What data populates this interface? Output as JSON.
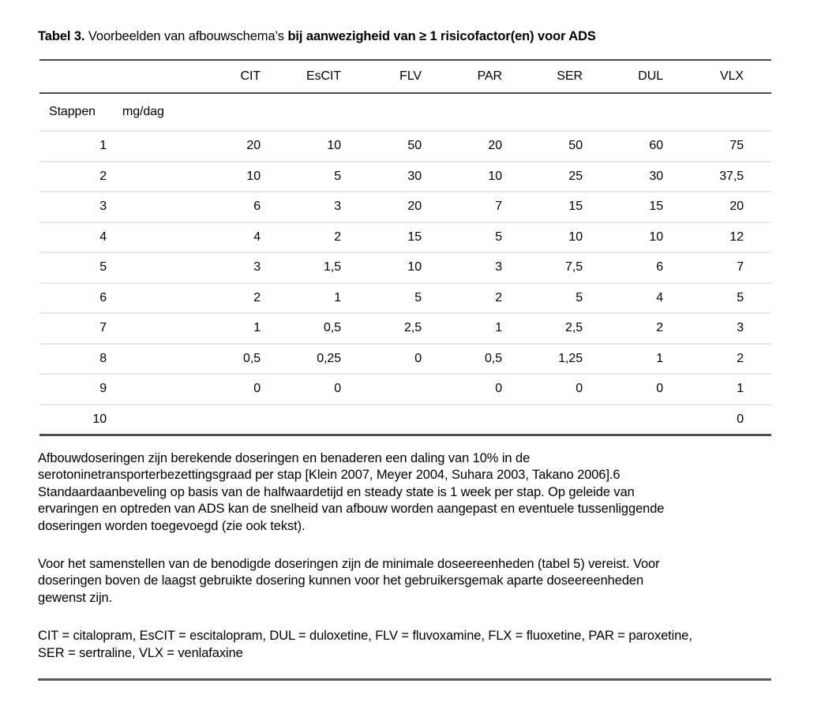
{
  "title": {
    "label_bold": "Tabel 3.",
    "text_regular": " Voorbeelden van afbouwschema’s ",
    "text_bold": "bij aanwezigheid van ≥ 1 risicofactor(en) voor ADS"
  },
  "table": {
    "drug_columns": [
      "CIT",
      "EsCIT",
      "FLV",
      "PAR",
      "SER",
      "DUL",
      "VLX"
    ],
    "stub_headers": {
      "steps": "Stappen",
      "unit": "mg/dag"
    },
    "rows": [
      {
        "step": "1",
        "doses": [
          "20",
          "10",
          "50",
          "20",
          "50",
          "60",
          "75"
        ]
      },
      {
        "step": "2",
        "doses": [
          "10",
          "5",
          "30",
          "10",
          "25",
          "30",
          "37,5"
        ]
      },
      {
        "step": "3",
        "doses": [
          "6",
          "3",
          "20",
          "7",
          "15",
          "15",
          "20"
        ]
      },
      {
        "step": "4",
        "doses": [
          "4",
          "2",
          "15",
          "5",
          "10",
          "10",
          "12"
        ]
      },
      {
        "step": "5",
        "doses": [
          "3",
          "1,5",
          "10",
          "3",
          "7,5",
          "6",
          "7"
        ]
      },
      {
        "step": "6",
        "doses": [
          "2",
          "1",
          "5",
          "2",
          "5",
          "4",
          "5"
        ]
      },
      {
        "step": "7",
        "doses": [
          "1",
          "0,5",
          "2,5",
          "1",
          "2,5",
          "2",
          "3"
        ]
      },
      {
        "step": "8",
        "doses": [
          "0,5",
          "0,25",
          "0",
          "0,5",
          "1,25",
          "1",
          "2"
        ]
      },
      {
        "step": "9",
        "doses": [
          "0",
          "0",
          "",
          "0",
          "0",
          "0",
          "1"
        ]
      },
      {
        "step": "10",
        "doses": [
          "",
          "",
          "",
          "",
          "",
          "",
          "0"
        ]
      }
    ]
  },
  "notes": {
    "paragraph1_lines": [
      "Afbouwdoseringen zijn berekende doseringen en benaderen een daling van 10% in de",
      "serotoninetransporterbezettingsgraad per stap [Klein 2007, Meyer 2004, Suhara 2003, Takano 2006].6",
      "Standaardaanbeveling op basis van de halfwaardetijd en steady state is 1 week per stap. Op geleide van",
      "ervaringen en optreden van ADS kan de snelheid van afbouw worden aangepast en eventuele tussenliggende",
      "doseringen worden toegevoegd (zie ook tekst)."
    ],
    "paragraph2_lines": [
      "Voor het samenstellen van de benodigde doseringen zijn de minimale doseereenheden (tabel 5) vereist. Voor",
      "doseringen boven de laagst gebruikte dosering kunnen voor het gebruikersgemak aparte doseereenheden",
      "gewenst zijn."
    ],
    "abbreviations_lines": [
      "CIT = citalopram, EsCIT = escitalopram, DUL = duloxetine, FLV = fluvoxamine, FLX = fluoxetine, PAR = paroxetine,",
      "SER = sertraline, VLX = venlafaxine"
    ]
  },
  "colors": {
    "background": "#ffffff",
    "text": "#000000",
    "rule_dark": "#4d4d4d",
    "rule_light": "#e8e8e8",
    "bottom_rule": "#595959"
  }
}
